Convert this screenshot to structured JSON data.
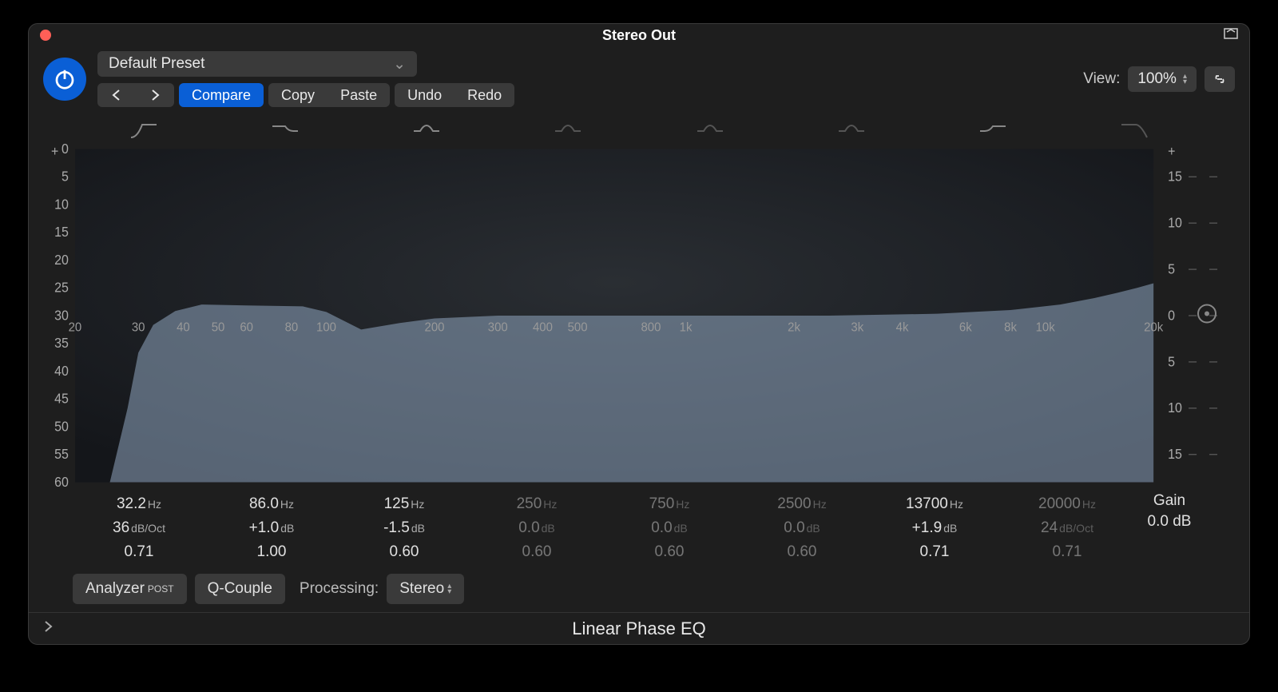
{
  "window_title": "Stereo Out",
  "preset_name": "Default Preset",
  "buttons": {
    "compare": "Compare",
    "copy": "Copy",
    "paste": "Paste",
    "undo": "Undo",
    "redo": "Redo"
  },
  "view": {
    "label": "View:",
    "value": "100%"
  },
  "plugin_name": "Linear Phase EQ",
  "colors": {
    "window_bg": "#1e1e1e",
    "accent": "#0a5fd6",
    "seg_bg": "#3a3a3a",
    "curve_fill": "#8fa6bf",
    "curve_fill_opacity": 0.55,
    "text": "#e0e0e0",
    "axis_text": "#aaaaaa",
    "grid": "#3a3a3a"
  },
  "graph": {
    "x_log_min_hz": 20,
    "x_log_max_hz": 20000,
    "left_axis": {
      "ticks": [
        0,
        5,
        10,
        15,
        20,
        25,
        30,
        35,
        40,
        45,
        50,
        55,
        60
      ],
      "plus": "+"
    },
    "right_axis": {
      "ticks": [
        15,
        10,
        5,
        0,
        5,
        10,
        15
      ],
      "plus": "+"
    },
    "frequency_labels": [
      {
        "hz": 20,
        "label": "20"
      },
      {
        "hz": 30,
        "label": "30"
      },
      {
        "hz": 40,
        "label": "40"
      },
      {
        "hz": 50,
        "label": "50"
      },
      {
        "hz": 60,
        "label": "60"
      },
      {
        "hz": 80,
        "label": "80"
      },
      {
        "hz": 100,
        "label": "100"
      },
      {
        "hz": 200,
        "label": "200"
      },
      {
        "hz": 300,
        "label": "300"
      },
      {
        "hz": 400,
        "label": "400"
      },
      {
        "hz": 500,
        "label": "500"
      },
      {
        "hz": 800,
        "label": "800"
      },
      {
        "hz": 1000,
        "label": "1k"
      },
      {
        "hz": 2000,
        "label": "2k"
      },
      {
        "hz": 3000,
        "label": "3k"
      },
      {
        "hz": 4000,
        "label": "4k"
      },
      {
        "hz": 6000,
        "label": "6k"
      },
      {
        "hz": 8000,
        "label": "8k"
      },
      {
        "hz": 10000,
        "label": "10k"
      },
      {
        "hz": 20000,
        "label": "20k"
      }
    ],
    "curve_points_db": [
      {
        "hz": 20,
        "db": -60
      },
      {
        "hz": 25,
        "db": -24
      },
      {
        "hz": 28,
        "db": -10
      },
      {
        "hz": 30,
        "db": -4
      },
      {
        "hz": 33,
        "db": -1
      },
      {
        "hz": 38,
        "db": 0.5
      },
      {
        "hz": 45,
        "db": 1.2
      },
      {
        "hz": 60,
        "db": 1.1
      },
      {
        "hz": 86,
        "db": 1.0
      },
      {
        "hz": 100,
        "db": 0.4
      },
      {
        "hz": 125,
        "db": -1.5
      },
      {
        "hz": 160,
        "db": -0.8
      },
      {
        "hz": 200,
        "db": -0.3
      },
      {
        "hz": 300,
        "db": 0
      },
      {
        "hz": 500,
        "db": 0
      },
      {
        "hz": 1000,
        "db": 0
      },
      {
        "hz": 2500,
        "db": 0
      },
      {
        "hz": 5000,
        "db": 0.2
      },
      {
        "hz": 8000,
        "db": 0.6
      },
      {
        "hz": 11000,
        "db": 1.2
      },
      {
        "hz": 13700,
        "db": 1.9
      },
      {
        "hz": 16000,
        "db": 2.5
      },
      {
        "hz": 18000,
        "db": 3.0
      },
      {
        "hz": 20000,
        "db": 3.5
      }
    ],
    "y_db_min": -18,
    "y_db_max": 18
  },
  "bands": [
    {
      "type": "highpass",
      "enabled": true,
      "icon": "hp",
      "freq": "32.2",
      "freq_unit": "Hz",
      "gain": "36",
      "gain_unit": "dB/Oct",
      "q": "0.71"
    },
    {
      "type": "lowshelf",
      "enabled": true,
      "icon": "ls",
      "freq": "86.0",
      "freq_unit": "Hz",
      "gain": "+1.0",
      "gain_unit": "dB",
      "q": "1.00"
    },
    {
      "type": "bell",
      "enabled": true,
      "icon": "bell",
      "freq": "125",
      "freq_unit": "Hz",
      "gain": "-1.5",
      "gain_unit": "dB",
      "q": "0.60"
    },
    {
      "type": "bell",
      "enabled": false,
      "icon": "bell",
      "freq": "250",
      "freq_unit": "Hz",
      "gain": "0.0",
      "gain_unit": "dB",
      "q": "0.60"
    },
    {
      "type": "bell",
      "enabled": false,
      "icon": "bell",
      "freq": "750",
      "freq_unit": "Hz",
      "gain": "0.0",
      "gain_unit": "dB",
      "q": "0.60"
    },
    {
      "type": "bell",
      "enabled": false,
      "icon": "bell",
      "freq": "2500",
      "freq_unit": "Hz",
      "gain": "0.0",
      "gain_unit": "dB",
      "q": "0.60"
    },
    {
      "type": "highshelf",
      "enabled": true,
      "icon": "hs",
      "freq": "13700",
      "freq_unit": "Hz",
      "gain": "+1.9",
      "gain_unit": "dB",
      "q": "0.71"
    },
    {
      "type": "lowpass",
      "enabled": false,
      "icon": "lp",
      "freq": "20000",
      "freq_unit": "Hz",
      "gain": "24",
      "gain_unit": "dB/Oct",
      "q": "0.71"
    }
  ],
  "master_gain": {
    "label": "Gain",
    "value": "0.0",
    "unit": "dB"
  },
  "bottom": {
    "analyzer": "Analyzer",
    "analyzer_mode": "POST",
    "qcouple": "Q-Couple",
    "processing_label": "Processing:",
    "processing_value": "Stereo"
  }
}
